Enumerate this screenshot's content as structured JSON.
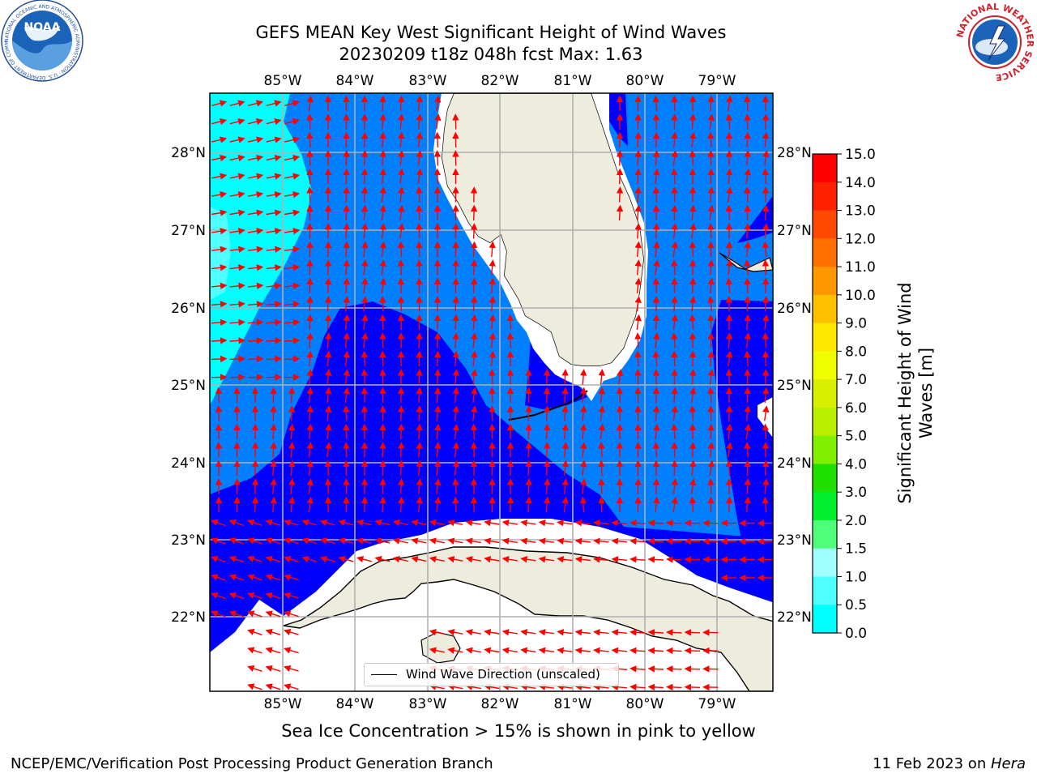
{
  "title": {
    "line1": "GEFS MEAN Key West Significant Height of Wind Waves",
    "line2": "20230209 t18z 048h fcst   Max: 1.63"
  },
  "map": {
    "lon_labels": [
      "85°W",
      "84°W",
      "83°W",
      "82°W",
      "81°W",
      "80°W",
      "79°W"
    ],
    "lat_labels": [
      "28°N",
      "27°N",
      "26°N",
      "25°N",
      "24°N",
      "23°N",
      "22°N"
    ],
    "lon_range": [
      -86.0,
      -78.3
    ],
    "lat_range": [
      21.0,
      28.8
    ],
    "land_color": "#eeecdc",
    "vector_color": "#ff0000"
  },
  "legend": {
    "label": "Wind Wave Direction (unscaled)"
  },
  "colorbar": {
    "label": "Significant Height of Wind Waves [m]",
    "ticks": [
      "15.0",
      "14.0",
      "13.0",
      "12.0",
      "11.0",
      "10.0",
      "9.0",
      "8.0",
      "7.0",
      "6.0",
      "5.0",
      "4.0",
      "3.0",
      "2.0",
      "1.5",
      "1.0",
      "0.5",
      "0.0"
    ],
    "colors": [
      "#ff0000",
      "#ff2000",
      "#ff4800",
      "#ff7000",
      "#ff9800",
      "#ffc000",
      "#ffe800",
      "#f0ff00",
      "#d8f000",
      "#b8f000",
      "#80f000",
      "#20e000",
      "#00f030",
      "#50ff78",
      "#a0ffff",
      "#50ffff",
      "#00ffff",
      "#0080ff",
      "#0000ff"
    ]
  },
  "ice_note": "Sea Ice Concentration > 15% is shown in pink to yellow",
  "footer": {
    "left": "NCEP/EMC/Verification Post Processing Product Generation Branch",
    "right_date": "11 Feb 2023 on ",
    "right_host": "Hera"
  },
  "logos": {
    "noaa": "NOAA",
    "noaa_ring": "NATIONAL OCEANIC AND ATMOSPHERIC ADMINISTRATION · U.S. DEPARTMENT OF COMMERCE",
    "nws": "NATIONAL WEATHER SERVICE"
  }
}
